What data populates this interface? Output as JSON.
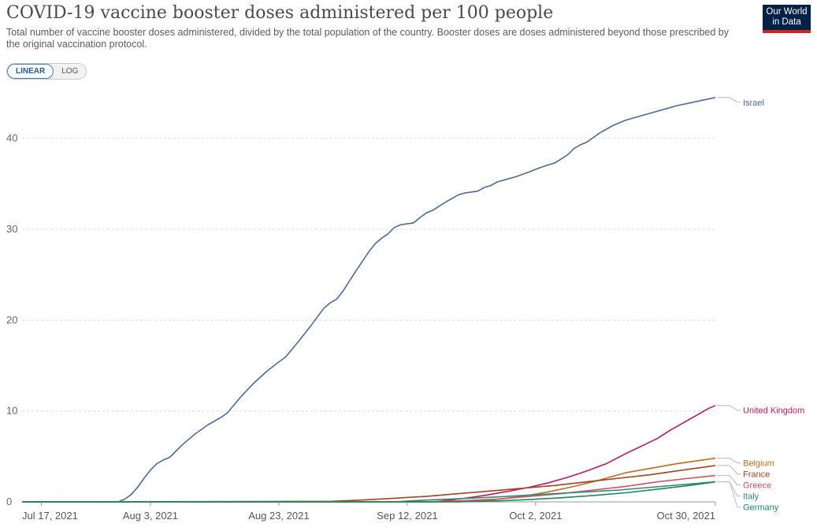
{
  "header": {
    "title": "COVID-19 vaccine booster doses administered per 100 people",
    "subtitle": "Total number of vaccine booster doses administered, divided by the total population of the country. Booster doses are doses administered beyond those prescribed by the original vaccination protocol.",
    "logo_line1": "Our World",
    "logo_line2": "in Data"
  },
  "controls": {
    "linear_label": "LINEAR",
    "log_label": "LOG",
    "selected": "LINEAR"
  },
  "chart_data": {
    "type": "line",
    "title": "COVID-19 vaccine booster doses administered per 100 people",
    "xlabel": "",
    "ylabel": "",
    "x_range": [
      "2021-07-14",
      "2021-10-30"
    ],
    "ylim": [
      0,
      45
    ],
    "y_ticks": [
      0,
      10,
      20,
      30,
      40
    ],
    "x_tick_labels": [
      {
        "date": "2021-07-17",
        "label": "Jul 17, 2021"
      },
      {
        "date": "2021-08-03",
        "label": "Aug 3, 2021"
      },
      {
        "date": "2021-08-23",
        "label": "Aug 23, 2021"
      },
      {
        "date": "2021-09-12",
        "label": "Sep 12, 2021"
      },
      {
        "date": "2021-10-02",
        "label": "Oct 2, 2021"
      },
      {
        "date": "2021-10-30",
        "label": "Oct 30, 2021"
      }
    ],
    "grid": "horizontal-dashed",
    "legend": "right-end-labels",
    "series": [
      {
        "name": "Israel",
        "color": "#4c6a9c",
        "points": [
          [
            "2021-07-14",
            0
          ],
          [
            "2021-07-29",
            0
          ],
          [
            "2021-07-30",
            0.3
          ],
          [
            "2021-07-31",
            0.8
          ],
          [
            "2021-08-01",
            1.6
          ],
          [
            "2021-08-02",
            2.6
          ],
          [
            "2021-08-03",
            3.5
          ],
          [
            "2021-08-04",
            4.2
          ],
          [
            "2021-08-05",
            4.6
          ],
          [
            "2021-08-06",
            4.9
          ],
          [
            "2021-08-08",
            6.3
          ],
          [
            "2021-08-10",
            7.5
          ],
          [
            "2021-08-12",
            8.5
          ],
          [
            "2021-08-14",
            9.3
          ],
          [
            "2021-08-15",
            9.8
          ],
          [
            "2021-08-17",
            11.5
          ],
          [
            "2021-08-19",
            13.0
          ],
          [
            "2021-08-21",
            14.3
          ],
          [
            "2021-08-23",
            15.4
          ],
          [
            "2021-08-24",
            15.9
          ],
          [
            "2021-08-26",
            17.6
          ],
          [
            "2021-08-28",
            19.4
          ],
          [
            "2021-08-30",
            21.3
          ],
          [
            "2021-08-31",
            21.9
          ],
          [
            "2021-09-01",
            22.3
          ],
          [
            "2021-09-02",
            23.2
          ],
          [
            "2021-09-04",
            25.4
          ],
          [
            "2021-09-06",
            27.5
          ],
          [
            "2021-09-07",
            28.4
          ],
          [
            "2021-09-08",
            29.0
          ],
          [
            "2021-09-09",
            29.5
          ],
          [
            "2021-09-10",
            30.2
          ],
          [
            "2021-09-11",
            30.5
          ],
          [
            "2021-09-13",
            30.7
          ],
          [
            "2021-09-14",
            31.3
          ],
          [
            "2021-09-15",
            31.8
          ],
          [
            "2021-09-16",
            32.1
          ],
          [
            "2021-09-18",
            33.0
          ],
          [
            "2021-09-20",
            33.8
          ],
          [
            "2021-09-21",
            34.0
          ],
          [
            "2021-09-23",
            34.2
          ],
          [
            "2021-09-24",
            34.6
          ],
          [
            "2021-09-25",
            34.8
          ],
          [
            "2021-09-26",
            35.2
          ],
          [
            "2021-09-27",
            35.4
          ],
          [
            "2021-09-29",
            35.8
          ],
          [
            "2021-10-01",
            36.3
          ],
          [
            "2021-10-02",
            36.6
          ],
          [
            "2021-10-04",
            37.1
          ],
          [
            "2021-10-05",
            37.3
          ],
          [
            "2021-10-07",
            38.2
          ],
          [
            "2021-10-08",
            38.9
          ],
          [
            "2021-10-09",
            39.3
          ],
          [
            "2021-10-10",
            39.6
          ],
          [
            "2021-10-11",
            40.1
          ],
          [
            "2021-10-12",
            40.6
          ],
          [
            "2021-10-14",
            41.4
          ],
          [
            "2021-10-16",
            42.0
          ],
          [
            "2021-10-18",
            42.4
          ],
          [
            "2021-10-20",
            42.8
          ],
          [
            "2021-10-22",
            43.2
          ],
          [
            "2021-10-24",
            43.6
          ],
          [
            "2021-10-26",
            43.9
          ],
          [
            "2021-10-28",
            44.2
          ],
          [
            "2021-10-30",
            44.5
          ]
        ]
      },
      {
        "name": "United Kingdom",
        "color": "#c2185b",
        "points": [
          [
            "2021-07-14",
            0
          ],
          [
            "2021-09-16",
            0
          ],
          [
            "2021-09-20",
            0.3
          ],
          [
            "2021-09-24",
            0.7
          ],
          [
            "2021-09-28",
            1.2
          ],
          [
            "2021-10-01",
            1.6
          ],
          [
            "2021-10-04",
            2.1
          ],
          [
            "2021-10-07",
            2.7
          ],
          [
            "2021-10-10",
            3.4
          ],
          [
            "2021-10-13",
            4.2
          ],
          [
            "2021-10-16",
            5.3
          ],
          [
            "2021-10-19",
            6.3
          ],
          [
            "2021-10-21",
            7.0
          ],
          [
            "2021-10-23",
            7.9
          ],
          [
            "2021-10-25",
            8.7
          ],
          [
            "2021-10-27",
            9.5
          ],
          [
            "2021-10-29",
            10.3
          ],
          [
            "2021-10-30",
            10.6
          ]
        ]
      },
      {
        "name": "Belgium",
        "color": "#c16b1c",
        "points": [
          [
            "2021-07-14",
            0
          ],
          [
            "2021-09-20",
            0
          ],
          [
            "2021-09-25",
            0.2
          ],
          [
            "2021-09-30",
            0.6
          ],
          [
            "2021-10-04",
            1.1
          ],
          [
            "2021-10-08",
            1.7
          ],
          [
            "2021-10-12",
            2.4
          ],
          [
            "2021-10-16",
            3.2
          ],
          [
            "2021-10-20",
            3.7
          ],
          [
            "2021-10-24",
            4.2
          ],
          [
            "2021-10-27",
            4.5
          ],
          [
            "2021-10-30",
            4.8
          ]
        ]
      },
      {
        "name": "France",
        "color": "#a4431f",
        "points": [
          [
            "2021-07-14",
            0
          ],
          [
            "2021-08-31",
            0.05
          ],
          [
            "2021-09-05",
            0.2
          ],
          [
            "2021-09-10",
            0.4
          ],
          [
            "2021-09-15",
            0.6
          ],
          [
            "2021-09-20",
            0.9
          ],
          [
            "2021-09-25",
            1.2
          ],
          [
            "2021-09-30",
            1.5
          ],
          [
            "2021-10-05",
            1.8
          ],
          [
            "2021-10-10",
            2.2
          ],
          [
            "2021-10-15",
            2.6
          ],
          [
            "2021-10-20",
            3.0
          ],
          [
            "2021-10-25",
            3.5
          ],
          [
            "2021-10-30",
            4.0
          ]
        ]
      },
      {
        "name": "Greece",
        "color": "#d94f5c",
        "points": [
          [
            "2021-07-14",
            0
          ],
          [
            "2021-09-14",
            0
          ],
          [
            "2021-09-20",
            0.1
          ],
          [
            "2021-09-26",
            0.3
          ],
          [
            "2021-10-01",
            0.6
          ],
          [
            "2021-10-06",
            0.9
          ],
          [
            "2021-10-11",
            1.3
          ],
          [
            "2021-10-16",
            1.7
          ],
          [
            "2021-10-21",
            2.2
          ],
          [
            "2021-10-26",
            2.6
          ],
          [
            "2021-10-30",
            2.9
          ]
        ]
      },
      {
        "name": "Italy",
        "color": "#2e8a7a",
        "points": [
          [
            "2021-07-14",
            0
          ],
          [
            "2021-09-10",
            0
          ],
          [
            "2021-09-15",
            0.2
          ],
          [
            "2021-09-20",
            0.35
          ],
          [
            "2021-09-25",
            0.5
          ],
          [
            "2021-09-30",
            0.7
          ],
          [
            "2021-10-05",
            0.9
          ],
          [
            "2021-10-10",
            1.1
          ],
          [
            "2021-10-15",
            1.3
          ],
          [
            "2021-10-20",
            1.6
          ],
          [
            "2021-10-25",
            1.9
          ],
          [
            "2021-10-30",
            2.2
          ]
        ]
      },
      {
        "name": "Germany",
        "color": "#1b8a5a",
        "points": [
          [
            "2021-07-14",
            0
          ],
          [
            "2021-09-20",
            0
          ],
          [
            "2021-09-26",
            0.1
          ],
          [
            "2021-10-01",
            0.25
          ],
          [
            "2021-10-06",
            0.45
          ],
          [
            "2021-10-11",
            0.7
          ],
          [
            "2021-10-16",
            1.0
          ],
          [
            "2021-10-21",
            1.4
          ],
          [
            "2021-10-26",
            1.8
          ],
          [
            "2021-10-30",
            2.2
          ]
        ]
      }
    ]
  }
}
